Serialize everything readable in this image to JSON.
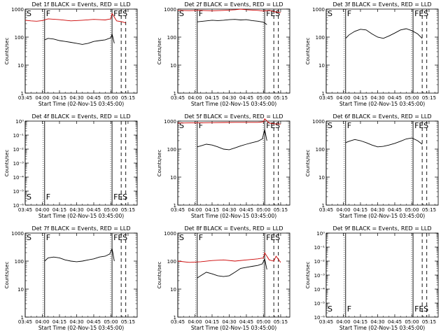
{
  "figure": {
    "time_ticks": [
      "03:45",
      "04:00",
      "04:15",
      "04:30",
      "04:45",
      "05:00",
      "05:15"
    ],
    "xlabel": "Start Time (02-Nov-15 03:45:00)",
    "ylabel": "Counts/sec",
    "colors": {
      "events": "#000000",
      "lld": "#cc0000"
    }
  },
  "chart_data": [
    {
      "type": "line",
      "title": "Det 1f BLACK = Events, RED = LLD",
      "xlabel": "Start Time (02-Nov-15 03:45:00)",
      "ylabel": "Counts/sec",
      "x_range_minutes": [
        0,
        98
      ],
      "ylim": [
        1,
        1000
      ],
      "y_scale": "log",
      "y_tick_labels": [
        "1",
        "10",
        "100",
        "1000"
      ],
      "markers": [
        {
          "label": "S",
          "t": 0,
          "line": "solid"
        },
        {
          "label": "F",
          "t": 17,
          "line": "solid"
        },
        {
          "label": "FE",
          "t": 76,
          "line": "solid"
        },
        {
          "label": "S",
          "t": 84,
          "line": "dashed"
        },
        {
          "label": "",
          "t": 88,
          "line": "dashed"
        }
      ],
      "marker_label_pos": "top",
      "series": [
        {
          "color": "#cc0000",
          "x": [
            0,
            5,
            10,
            15,
            20,
            30,
            40,
            50,
            60,
            65,
            70,
            75,
            76,
            80,
            85,
            88
          ],
          "y": [
            400,
            380,
            370,
            390,
            450,
            420,
            380,
            400,
            430,
            420,
            410,
            450,
            700,
            380,
            350,
            320
          ]
        },
        {
          "color": "#000000",
          "x": [
            17,
            20,
            25,
            30,
            35,
            40,
            45,
            50,
            55,
            60,
            65,
            70,
            75,
            76,
            78
          ],
          "y": [
            80,
            90,
            85,
            75,
            70,
            65,
            60,
            55,
            60,
            70,
            75,
            80,
            95,
            130,
            60
          ]
        }
      ]
    },
    {
      "type": "line",
      "title": "Det 2f BLACK = Events, RED = LLD",
      "xlabel": "Start Time (02-Nov-15 03:45:00)",
      "ylabel": "Counts/sec",
      "x_range_minutes": [
        0,
        98
      ],
      "ylim": [
        1,
        1000
      ],
      "y_scale": "log",
      "y_tick_labels": [
        "1",
        "10",
        "100",
        "1000"
      ],
      "markers": [
        {
          "label": "S",
          "t": 0,
          "line": "solid"
        },
        {
          "label": "F",
          "t": 17,
          "line": "solid"
        },
        {
          "label": "FE",
          "t": 76,
          "line": "solid"
        },
        {
          "label": "S",
          "t": 84,
          "line": "dashed"
        },
        {
          "label": "",
          "t": 88,
          "line": "dashed"
        }
      ],
      "marker_label_pos": "top",
      "series": [
        {
          "color": "#cc0000",
          "x": [
            0,
            10,
            20,
            30,
            40,
            50,
            55,
            60,
            70,
            75,
            80,
            85,
            90
          ],
          "y": [
            900,
            880,
            900,
            870,
            900,
            950,
            1000,
            950,
            900,
            850,
            900,
            800,
            750
          ]
        },
        {
          "color": "#000000",
          "x": [
            17,
            25,
            30,
            35,
            40,
            45,
            50,
            55,
            60,
            65,
            70,
            75,
            78
          ],
          "y": [
            350,
            380,
            400,
            390,
            400,
            420,
            430,
            410,
            420,
            390,
            370,
            340,
            280
          ]
        }
      ]
    },
    {
      "type": "line",
      "title": "Det 3f BLACK = Events, RED = LLD",
      "xlabel": "Start Time (02-Nov-15 03:45:00)",
      "ylabel": "Counts/sec",
      "x_range_minutes": [
        0,
        98
      ],
      "ylim": [
        1,
        1000
      ],
      "y_scale": "log",
      "y_tick_labels": [
        "1",
        "10",
        "100",
        "1000"
      ],
      "markers": [
        {
          "label": "S",
          "t": 0,
          "line": "solid"
        },
        {
          "label": "F",
          "t": 17,
          "line": "solid"
        },
        {
          "label": "FE",
          "t": 76,
          "line": "solid"
        },
        {
          "label": "S",
          "t": 84,
          "line": "dashed"
        },
        {
          "label": "",
          "t": 88,
          "line": "dashed"
        }
      ],
      "marker_label_pos": "top",
      "series": [
        {
          "color": "#000000",
          "x": [
            17,
            20,
            25,
            30,
            35,
            40,
            45,
            50,
            55,
            60,
            65,
            70,
            75,
            80,
            84
          ],
          "y": [
            90,
            120,
            160,
            190,
            180,
            130,
            100,
            90,
            110,
            140,
            180,
            200,
            170,
            130,
            90
          ]
        }
      ]
    },
    {
      "type": "line",
      "title": "Det 4f BLACK = Events, RED = LLD",
      "xlabel": "Start Time (02-Nov-15 03:45:00)",
      "ylabel": "Counts/sec",
      "x_range_minutes": [
        0,
        98
      ],
      "ylim": [
        1e-06,
        1
      ],
      "y_scale": "log",
      "y_tick_labels": [
        "10⁻⁶",
        "10⁻⁵",
        "10⁻⁴",
        "10⁻³",
        "10⁻²",
        "10⁻¹",
        "10⁰"
      ],
      "markers": [
        {
          "label": "S",
          "t": 0,
          "line": "solid"
        },
        {
          "label": "F",
          "t": 17,
          "line": "solid"
        },
        {
          "label": "FE",
          "t": 76,
          "line": "solid"
        },
        {
          "label": "S",
          "t": 84,
          "line": "dashed"
        },
        {
          "label": "",
          "t": 88,
          "line": "dashed"
        }
      ],
      "marker_label_pos": "bottom",
      "series": []
    },
    {
      "type": "line",
      "title": "Det 5f BLACK = Events, RED = LLD",
      "xlabel": "Start Time (02-Nov-15 03:45:00)",
      "ylabel": "Counts/sec",
      "x_range_minutes": [
        0,
        98
      ],
      "ylim": [
        1,
        1000
      ],
      "y_scale": "log",
      "y_tick_labels": [
        "1",
        "10",
        "100",
        "1000"
      ],
      "markers": [
        {
          "label": "S",
          "t": 0,
          "line": "solid"
        },
        {
          "label": "F",
          "t": 17,
          "line": "solid"
        },
        {
          "label": "FE",
          "t": 76,
          "line": "solid"
        },
        {
          "label": "S",
          "t": 84,
          "line": "dashed"
        },
        {
          "label": "",
          "t": 88,
          "line": "dashed"
        }
      ],
      "marker_label_pos": "top",
      "series": [
        {
          "color": "#cc0000",
          "x": [
            0,
            10,
            20,
            30,
            40,
            50,
            60,
            70,
            75,
            76,
            80,
            85,
            90
          ],
          "y": [
            850,
            860,
            870,
            880,
            890,
            900,
            900,
            900,
            950,
            1200,
            850,
            800,
            780
          ]
        },
        {
          "color": "#000000",
          "x": [
            17,
            20,
            25,
            30,
            35,
            40,
            45,
            50,
            55,
            60,
            65,
            70,
            74,
            76,
            78
          ],
          "y": [
            120,
            130,
            150,
            140,
            120,
            100,
            95,
            110,
            130,
            150,
            170,
            190,
            230,
            500,
            200
          ]
        }
      ]
    },
    {
      "type": "line",
      "title": "Det 6f BLACK = Events, RED = LLD",
      "xlabel": "Start Time (02-Nov-15 03:45:00)",
      "ylabel": "Counts/sec",
      "x_range_minutes": [
        0,
        98
      ],
      "ylim": [
        1,
        1000
      ],
      "y_scale": "log",
      "y_tick_labels": [
        "1",
        "10",
        "100",
        "1000"
      ],
      "markers": [
        {
          "label": "S",
          "t": 0,
          "line": "solid"
        },
        {
          "label": "F",
          "t": 17,
          "line": "solid"
        },
        {
          "label": "FE",
          "t": 76,
          "line": "solid"
        },
        {
          "label": "S",
          "t": 84,
          "line": "dashed"
        },
        {
          "label": "",
          "t": 88,
          "line": "dashed"
        }
      ],
      "marker_label_pos": "top",
      "series": [
        {
          "color": "#000000",
          "x": [
            17,
            20,
            25,
            30,
            35,
            40,
            45,
            50,
            55,
            60,
            65,
            70,
            75,
            80,
            84
          ],
          "y": [
            170,
            190,
            220,
            200,
            170,
            140,
            120,
            125,
            140,
            160,
            190,
            230,
            250,
            200,
            150
          ]
        }
      ]
    },
    {
      "type": "line",
      "title": "Det 7f BLACK = Events, RED = LLD",
      "xlabel": "Start Time (02-Nov-15 03:45:00)",
      "ylabel": "Counts/sec",
      "x_range_minutes": [
        0,
        98
      ],
      "ylim": [
        1,
        1000
      ],
      "y_scale": "log",
      "y_tick_labels": [
        "1",
        "10",
        "100",
        "1000"
      ],
      "markers": [
        {
          "label": "S",
          "t": 0,
          "line": "solid"
        },
        {
          "label": "F",
          "t": 17,
          "line": "solid"
        },
        {
          "label": "FE",
          "t": 76,
          "line": "solid"
        },
        {
          "label": "S",
          "t": 84,
          "line": "dashed"
        },
        {
          "label": "",
          "t": 88,
          "line": "dashed"
        }
      ],
      "marker_label_pos": "top",
      "series": [
        {
          "color": "#000000",
          "x": [
            17,
            20,
            25,
            30,
            35,
            40,
            45,
            50,
            55,
            60,
            65,
            70,
            74,
            76,
            78
          ],
          "y": [
            100,
            130,
            140,
            130,
            110,
            100,
            95,
            100,
            110,
            120,
            140,
            150,
            180,
            280,
            100
          ]
        }
      ]
    },
    {
      "type": "line",
      "title": "Det 8f BLACK = Events, RED = LLD",
      "xlabel": "Start Time (02-Nov-15 03:45:00)",
      "ylabel": "Counts/sec",
      "x_range_minutes": [
        0,
        98
      ],
      "ylim": [
        1,
        1000
      ],
      "y_scale": "log",
      "y_tick_labels": [
        "1",
        "10",
        "100",
        "1000"
      ],
      "markers": [
        {
          "label": "S",
          "t": 0,
          "line": "solid"
        },
        {
          "label": "F",
          "t": 17,
          "line": "solid"
        },
        {
          "label": "FE",
          "t": 76,
          "line": "solid"
        },
        {
          "label": "S",
          "t": 84,
          "line": "dashed"
        },
        {
          "label": "",
          "t": 88,
          "line": "dashed"
        }
      ],
      "marker_label_pos": "top",
      "series": [
        {
          "color": "#cc0000",
          "x": [
            0,
            10,
            20,
            30,
            40,
            50,
            60,
            70,
            75,
            76,
            80,
            84,
            86,
            90
          ],
          "y": [
            100,
            90,
            95,
            105,
            110,
            100,
            110,
            120,
            130,
            200,
            110,
            100,
            150,
            90
          ]
        },
        {
          "color": "#000000",
          "x": [
            17,
            20,
            25,
            30,
            35,
            40,
            45,
            50,
            55,
            60,
            65,
            70,
            74,
            76,
            78
          ],
          "y": [
            25,
            30,
            40,
            35,
            30,
            28,
            30,
            40,
            55,
            60,
            65,
            70,
            80,
            120,
            50
          ]
        }
      ]
    },
    {
      "type": "line",
      "title": "Det 9f BLACK = Events, RED = LLD",
      "xlabel": "Start Time (02-Nov-15 03:45:00)",
      "ylabel": "Counts/sec",
      "x_range_minutes": [
        0,
        98
      ],
      "ylim": [
        1e-06,
        1
      ],
      "y_scale": "log",
      "y_tick_labels": [
        "10⁻⁶",
        "10⁻⁵",
        "10⁻⁴",
        "10⁻³",
        "10⁻²",
        "10⁻¹",
        "10⁰"
      ],
      "markers": [
        {
          "label": "S",
          "t": 0,
          "line": "solid"
        },
        {
          "label": "F",
          "t": 17,
          "line": "solid"
        },
        {
          "label": "FE",
          "t": 76,
          "line": "solid"
        },
        {
          "label": "S",
          "t": 84,
          "line": "dashed"
        },
        {
          "label": "",
          "t": 88,
          "line": "dashed"
        }
      ],
      "marker_label_pos": "bottom",
      "series": []
    }
  ]
}
